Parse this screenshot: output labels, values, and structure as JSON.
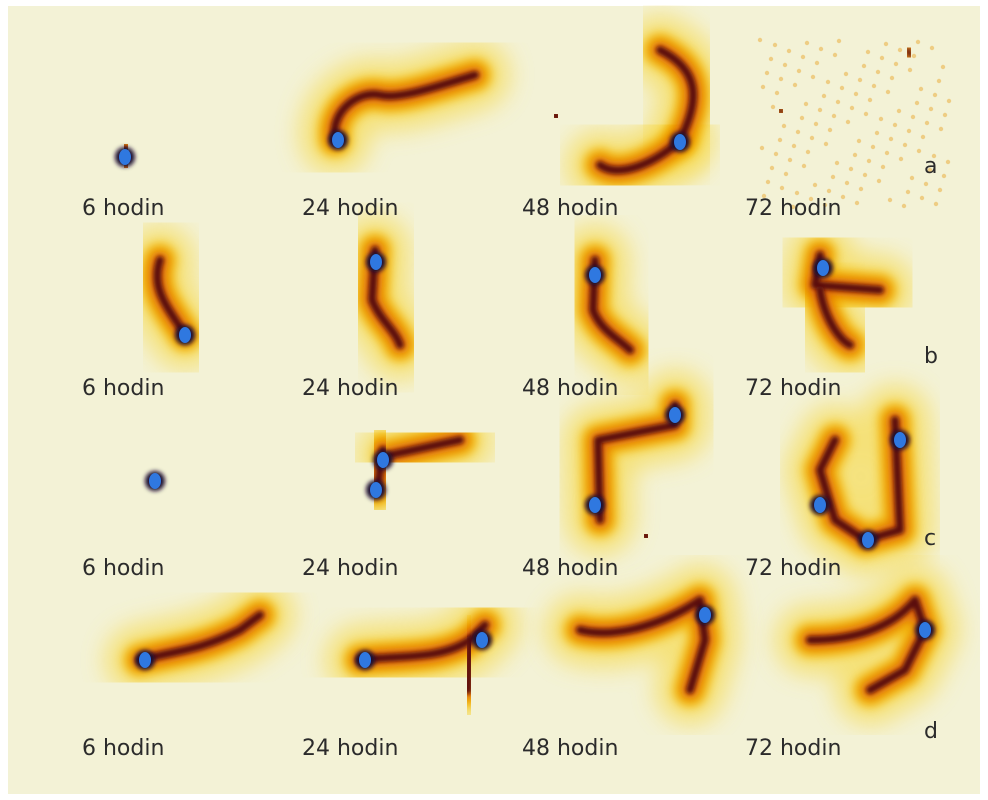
{
  "rows": [
    {
      "letter": "a",
      "panels": [
        {
          "label": "6 hodin"
        },
        {
          "label": "24 hodin"
        },
        {
          "label": "48 hodin"
        },
        {
          "label": "72 hodin"
        }
      ]
    },
    {
      "letter": "b",
      "panels": [
        {
          "label": "6 hodin"
        },
        {
          "label": "24 hodin"
        },
        {
          "label": "48 hodin"
        },
        {
          "label": "72 hodin"
        }
      ]
    },
    {
      "letter": "c",
      "panels": [
        {
          "label": "6 hodin"
        },
        {
          "label": "24 hodin"
        },
        {
          "label": "48 hodin"
        },
        {
          "label": "72 hodin"
        }
      ]
    },
    {
      "letter": "d",
      "panels": [
        {
          "label": "6 hodin"
        },
        {
          "label": "24 hodin"
        },
        {
          "label": "48 hodin"
        },
        {
          "label": "72 hodin"
        }
      ]
    }
  ]
}
